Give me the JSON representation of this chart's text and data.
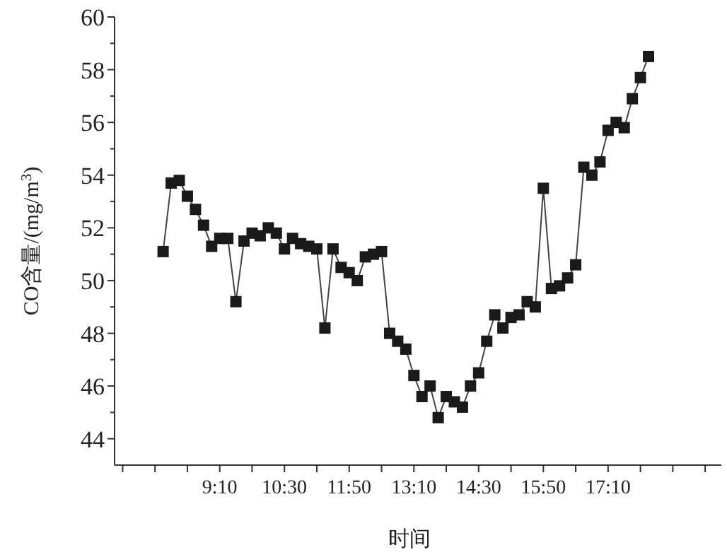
{
  "chart_data": {
    "type": "line",
    "xlabel": "时间",
    "ylabel": "CO含量/(mg/m$^{3}$)",
    "x": [
      8.0,
      8.167,
      8.333,
      8.5,
      8.667,
      8.833,
      9.0,
      9.167,
      9.333,
      9.5,
      9.667,
      9.833,
      10.0,
      10.167,
      10.333,
      10.5,
      10.667,
      10.833,
      11.0,
      11.167,
      11.333,
      11.5,
      11.667,
      11.833,
      12.0,
      12.167,
      12.333,
      12.5,
      12.667,
      12.833,
      13.0,
      13.167,
      13.333,
      13.5,
      13.667,
      13.833,
      14.0,
      14.167,
      14.333,
      14.5,
      14.667,
      14.833,
      15.0,
      15.167,
      15.333,
      15.5,
      15.667,
      15.833,
      16.0,
      16.167,
      16.333,
      16.5,
      16.667,
      16.833,
      17.0,
      17.167,
      17.333,
      17.5,
      17.667,
      17.833,
      18.0
    ],
    "series": [
      {
        "color": "#1a1a1a",
        "values": [
          51.1,
          53.7,
          53.8,
          53.2,
          52.7,
          52.1,
          51.3,
          51.6,
          51.6,
          49.2,
          51.5,
          51.8,
          51.7,
          52.0,
          51.8,
          51.2,
          51.6,
          51.4,
          51.3,
          51.2,
          48.2,
          51.2,
          50.5,
          50.3,
          50.0,
          50.9,
          51.0,
          51.1,
          48.0,
          47.7,
          47.4,
          46.4,
          45.6,
          46.0,
          44.8,
          45.6,
          45.4,
          45.2,
          46.0,
          46.5,
          47.7,
          48.7,
          48.2,
          48.6,
          48.7,
          49.2,
          49.0,
          53.5,
          49.7,
          49.8,
          50.1,
          50.6,
          54.3,
          54.0,
          54.5,
          55.7,
          56.0,
          55.8,
          56.9,
          57.7,
          58.5
        ]
      }
    ],
    "xlim": [
      7.0,
      19.5
    ],
    "xticks": [
      {
        "value": 7.1667,
        "label": null
      },
      {
        "value": 7.8333,
        "label": null
      },
      {
        "value": 8.5,
        "label": null
      },
      {
        "value": 9.1667,
        "label": "9:10"
      },
      {
        "value": 9.8333,
        "label": null
      },
      {
        "value": 10.5,
        "label": "10:30"
      },
      {
        "value": 11.1667,
        "label": null
      },
      {
        "value": 11.8333,
        "label": "11:50"
      },
      {
        "value": 12.5,
        "label": null
      },
      {
        "value": 13.1667,
        "label": "13:10"
      },
      {
        "value": 13.8333,
        "label": null
      },
      {
        "value": 14.5,
        "label": "14:30"
      },
      {
        "value": 15.1667,
        "label": null
      },
      {
        "value": 15.8333,
        "label": "15:50"
      },
      {
        "value": 16.5,
        "label": null
      },
      {
        "value": 17.1667,
        "label": "17:10"
      },
      {
        "value": 17.8333,
        "label": null
      },
      {
        "value": 18.5,
        "label": null
      },
      {
        "value": 19.1667,
        "label": null
      }
    ],
    "ylim": [
      43,
      60
    ],
    "yticks": [
      44,
      {
        "value": 45,
        "label": null
      },
      46,
      {
        "value": 47,
        "label": null
      },
      48,
      {
        "value": 49,
        "label": null
      },
      50,
      {
        "value": 51,
        "label": null
      },
      52,
      {
        "value": 53,
        "label": null
      },
      54,
      {
        "value": 55,
        "label": null
      },
      56,
      {
        "value": 57,
        "label": null
      },
      58,
      {
        "value": 59,
        "label": null
      },
      60
    ],
    "marker": "square",
    "line_style": "solid",
    "grid": false
  }
}
